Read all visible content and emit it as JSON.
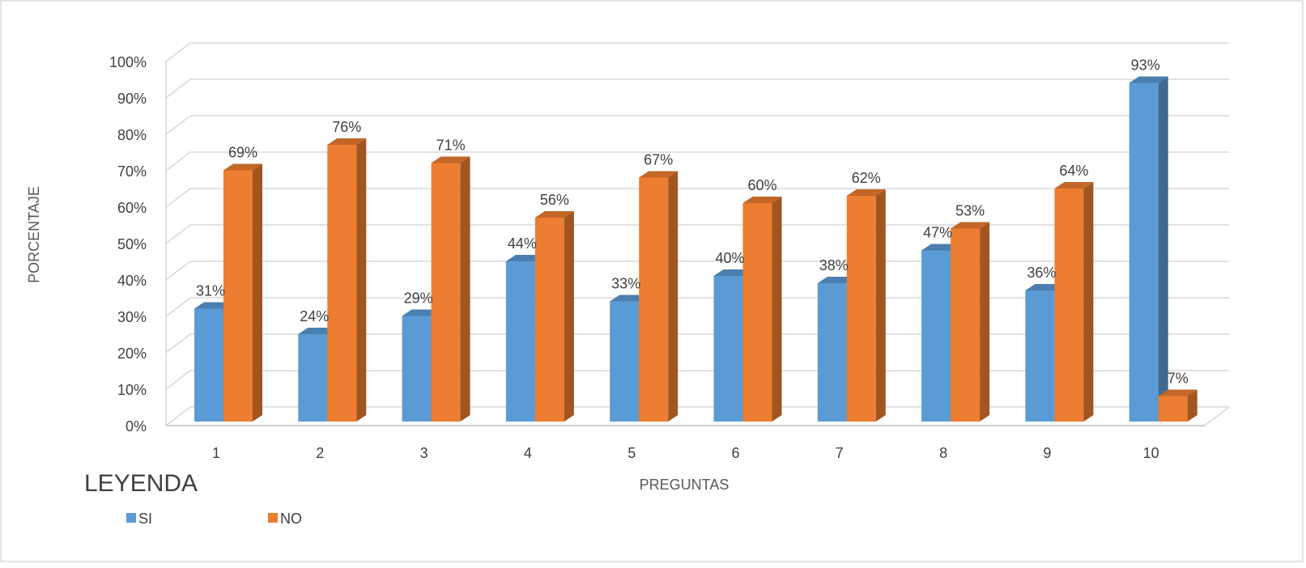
{
  "chart_data": {
    "type": "bar",
    "title": "",
    "xlabel": "PREGUNTAS",
    "ylabel": "PORCENTAJE",
    "ylim": [
      0,
      100
    ],
    "y_ticks": [
      "0%",
      "10%",
      "20%",
      "30%",
      "40%",
      "50%",
      "60%",
      "70%",
      "80%",
      "90%",
      "100%"
    ],
    "categories": [
      "1",
      "2",
      "3",
      "4",
      "5",
      "6",
      "7",
      "8",
      "9",
      "10"
    ],
    "series": [
      {
        "name": "SI",
        "color": "#5B9BD5",
        "values": [
          31,
          24,
          29,
          44,
          33,
          40,
          38,
          47,
          36,
          93
        ],
        "labels": [
          "31%",
          "24%",
          "29%",
          "44%",
          "33%",
          "40%",
          "38%",
          "47%",
          "36%",
          "93%"
        ]
      },
      {
        "name": "NO",
        "color": "#ED7D31",
        "values": [
          69,
          76,
          71,
          56,
          67,
          60,
          62,
          53,
          64,
          7
        ],
        "labels": [
          "69%",
          "76%",
          "71%",
          "56%",
          "67%",
          "60%",
          "62%",
          "53%",
          "64%",
          "7%"
        ]
      }
    ],
    "legend_title": "LEYENDA",
    "legend_position": "bottom-left",
    "grid": true,
    "style": "3d-clustered-column"
  }
}
